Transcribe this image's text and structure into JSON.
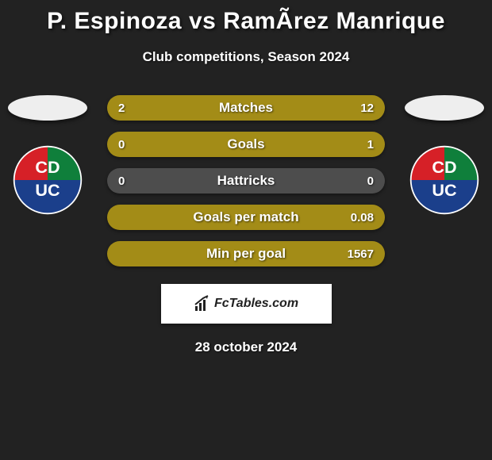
{
  "title": "P. Espinoza vs RamÃ­rez Manrique",
  "subtitle": "Club competitions, Season 2024",
  "date": "28 october 2024",
  "brand": "FcTables.com",
  "colors": {
    "background": "#222222",
    "bar_primary": "#a38c17",
    "bar_secondary": "#4d4d4d",
    "avatar_placeholder": "#eeeeee",
    "brand_box": "#ffffff",
    "brand_text": "#222222",
    "text": "#ffffff"
  },
  "club_badge": {
    "top_left": "#d62027",
    "top_right": "#0f7f3b",
    "bottom": "#1b3f8b",
    "letters": "#ffffff",
    "letters_text": "CD UC",
    "outline": "#ffffff"
  },
  "rows": [
    {
      "label": "Matches",
      "left_val": "2",
      "right_val": "12",
      "left_width": 14,
      "right_width": 86,
      "bar_style": "split"
    },
    {
      "label": "Goals",
      "left_val": "0",
      "right_val": "1",
      "left_width": 0,
      "right_width": 100,
      "bar_style": "solid"
    },
    {
      "label": "Hattricks",
      "left_val": "0",
      "right_val": "0",
      "left_width": 0,
      "right_width": 0,
      "bar_style": "neutral"
    },
    {
      "label": "Goals per match",
      "left_val": "",
      "right_val": "0.08",
      "left_width": 0,
      "right_width": 100,
      "bar_style": "solid"
    },
    {
      "label": "Min per goal",
      "left_val": "",
      "right_val": "1567",
      "left_width": 0,
      "right_width": 100,
      "bar_style": "solid"
    }
  ]
}
